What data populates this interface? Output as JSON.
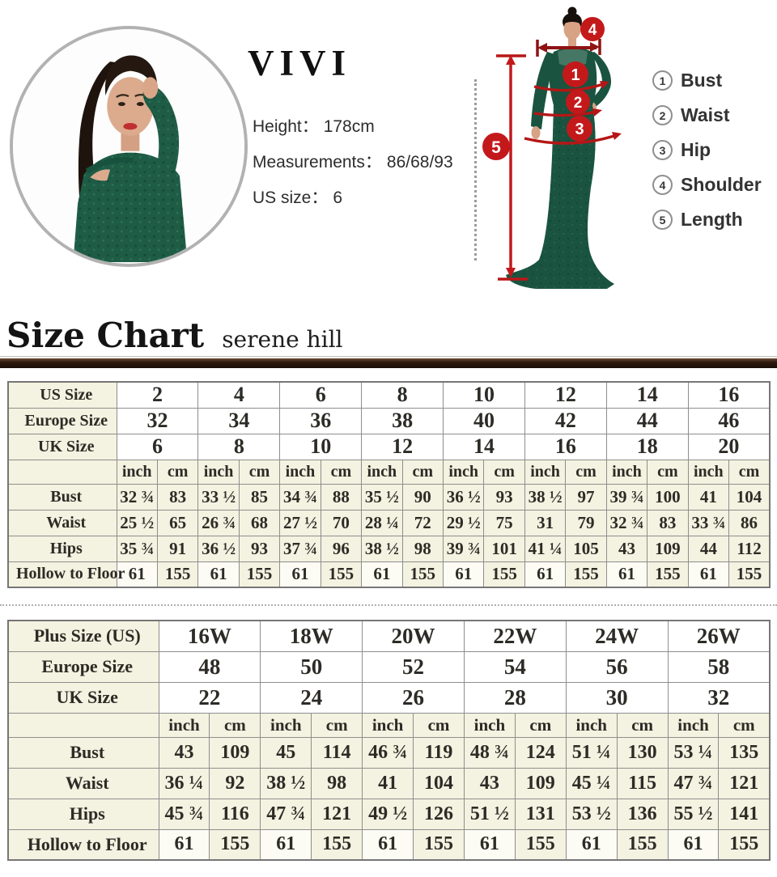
{
  "profile": {
    "brand": "VIVI",
    "lines": [
      {
        "label": "Height：",
        "value": "178cm"
      },
      {
        "label": "Measurements：",
        "value": "86/68/93"
      },
      {
        "label": "US size：",
        "value": "6"
      }
    ]
  },
  "diagram": {
    "markers": [
      "1",
      "2",
      "3",
      "4",
      "5"
    ],
    "legend": [
      {
        "num": "1",
        "label": "Bust"
      },
      {
        "num": "2",
        "label": "Waist"
      },
      {
        "num": "3",
        "label": "Hip"
      },
      {
        "num": "4",
        "label": "Shoulder"
      },
      {
        "num": "5",
        "label": "Length"
      }
    ]
  },
  "heading": {
    "title": "Size Chart",
    "subtitle": "serene hill"
  },
  "colors": {
    "accent_red": "#c3191b",
    "dark_red": "#8f1313",
    "cream_cell": "#f4f2e0",
    "bar_brown": "#2e1a10",
    "dress_green": "#1a5440"
  },
  "size_tables": [
    {
      "name": "standard-size-table",
      "header_rows": [
        {
          "label": "US Size",
          "values": [
            "2",
            "4",
            "6",
            "8",
            "10",
            "12",
            "14",
            "16"
          ]
        },
        {
          "label": "Europe Size",
          "values": [
            "32",
            "34",
            "36",
            "38",
            "40",
            "42",
            "44",
            "46"
          ]
        },
        {
          "label": "UK Size",
          "values": [
            "6",
            "8",
            "10",
            "12",
            "14",
            "16",
            "18",
            "20"
          ]
        }
      ],
      "unit_headers": [
        "inch",
        "cm"
      ],
      "body_rows": [
        {
          "label": "Bust",
          "values": [
            "32 ¾",
            "83",
            "33 ½",
            "85",
            "34 ¾",
            "88",
            "35 ½",
            "90",
            "36 ½",
            "93",
            "38 ½",
            "97",
            "39 ¾",
            "100",
            "41",
            "104"
          ]
        },
        {
          "label": "Waist",
          "values": [
            "25 ½",
            "65",
            "26 ¾",
            "68",
            "27 ½",
            "70",
            "28 ¼",
            "72",
            "29 ½",
            "75",
            "31",
            "79",
            "32 ¾",
            "83",
            "33 ¾",
            "86"
          ]
        },
        {
          "label": "Hips",
          "values": [
            "35 ¾",
            "91",
            "36 ½",
            "93",
            "37 ¾",
            "96",
            "38 ½",
            "98",
            "39 ¾",
            "101",
            "41 ¼",
            "105",
            "43",
            "109",
            "44",
            "112"
          ]
        },
        {
          "label": "Hollow to Floor",
          "values": [
            "61",
            "155",
            "61",
            "155",
            "61",
            "155",
            "61",
            "155",
            "61",
            "155",
            "61",
            "155",
            "61",
            "155",
            "61",
            "155"
          ]
        }
      ]
    },
    {
      "name": "plus-size-table",
      "header_rows": [
        {
          "label": "Plus Size (US)",
          "values": [
            "16W",
            "18W",
            "20W",
            "22W",
            "24W",
            "26W"
          ]
        },
        {
          "label": "Europe Size",
          "values": [
            "48",
            "50",
            "52",
            "54",
            "56",
            "58"
          ]
        },
        {
          "label": "UK Size",
          "values": [
            "22",
            "24",
            "26",
            "28",
            "30",
            "32"
          ]
        }
      ],
      "unit_headers": [
        "inch",
        "cm"
      ],
      "body_rows": [
        {
          "label": "Bust",
          "values": [
            "43",
            "109",
            "45",
            "114",
            "46 ¾",
            "119",
            "48 ¾",
            "124",
            "51 ¼",
            "130",
            "53 ¼",
            "135"
          ]
        },
        {
          "label": "Waist",
          "values": [
            "36 ¼",
            "92",
            "38 ½",
            "98",
            "41",
            "104",
            "43",
            "109",
            "45 ¼",
            "115",
            "47 ¾",
            "121"
          ]
        },
        {
          "label": "Hips",
          "values": [
            "45 ¾",
            "116",
            "47 ¾",
            "121",
            "49 ½",
            "126",
            "51 ½",
            "131",
            "53 ½",
            "136",
            "55 ½",
            "141"
          ]
        },
        {
          "label": "Hollow to Floor",
          "values": [
            "61",
            "155",
            "61",
            "155",
            "61",
            "155",
            "61",
            "155",
            "61",
            "155",
            "61",
            "155"
          ]
        }
      ]
    }
  ]
}
